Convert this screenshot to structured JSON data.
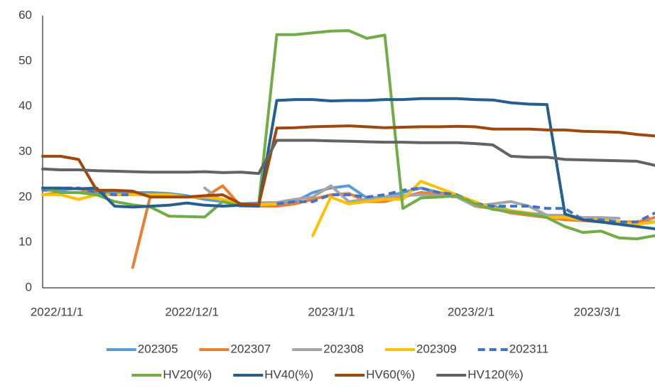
{
  "chart_data": {
    "type": "line",
    "x": [
      "2022/11/1",
      "2022/11/5",
      "2022/11/9",
      "2022/11/13",
      "2022/11/17",
      "2022/11/21",
      "2022/11/25",
      "2022/11/29",
      "2022/12/3",
      "2022/12/7",
      "2022/12/11",
      "2022/12/15",
      "2022/12/19",
      "2022/12/23",
      "2022/12/27",
      "2022/12/31",
      "2023/1/4",
      "2023/1/8",
      "2023/1/12",
      "2023/1/16",
      "2023/1/20",
      "2023/1/24",
      "2023/1/28",
      "2023/2/1",
      "2023/2/5",
      "2023/2/9",
      "2023/2/13",
      "2023/2/17",
      "2023/2/21",
      "2023/2/25",
      "2023/3/1",
      "2023/3/5",
      "2023/3/9",
      "2023/3/13",
      "2023/3/17"
    ],
    "xlim": [
      "2022/11/1",
      "2023/3/17"
    ],
    "xticks": [
      "2022/11/1",
      "2022/12/1",
      "2023/1/1",
      "2023/2/1",
      "2023/3/1"
    ],
    "ylim": [
      0,
      60
    ],
    "yticks": [
      0,
      10,
      20,
      30,
      40,
      50,
      60
    ],
    "series": [
      {
        "name": "202305",
        "color": "#5b9bd5",
        "values": [
          21.5,
          21.5,
          22,
          21,
          21,
          21,
          21,
          20.8,
          20.3,
          19.5,
          19,
          18.5,
          18.7,
          18.8,
          19,
          21,
          22,
          22.5,
          19.8,
          20,
          21,
          22,
          21,
          20.5,
          18.5,
          18,
          17,
          16.5,
          16,
          15.5,
          15,
          14.5,
          14.5,
          14.5,
          14.5
        ]
      },
      {
        "name": "202307",
        "color": "#ed7d31",
        "values": [
          20.5,
          21,
          21,
          21.5,
          null,
          4.5,
          20.5,
          20.5,
          20,
          20,
          22.5,
          18,
          18,
          18,
          18.5,
          19.5,
          20.5,
          20.8,
          19,
          19,
          20,
          21,
          20.8,
          20.5,
          18,
          17.5,
          16.5,
          16,
          15.5,
          15,
          14.8,
          14.5,
          14.5,
          14.5,
          15.5
        ]
      },
      {
        "name": "202308",
        "color": "#a5a5a5",
        "values": [
          null,
          null,
          null,
          null,
          null,
          null,
          null,
          null,
          null,
          22,
          19,
          18,
          18.5,
          18.8,
          19.5,
          20,
          22.5,
          19,
          19.5,
          20,
          20.3,
          20.5,
          20.3,
          20,
          18,
          18.5,
          19,
          18,
          16,
          16,
          15.5,
          15.5,
          15.3,
          null,
          15.5
        ]
      },
      {
        "name": "202309",
        "color": "#ffc000",
        "values": [
          20.5,
          20.5,
          19.5,
          20.5,
          20.5,
          20.5,
          20.5,
          20.5,
          20,
          20,
          19.5,
          18.5,
          18.3,
          18.5,
          null,
          11.5,
          20,
          18.5,
          19,
          19.5,
          19.5,
          23.5,
          22,
          20.5,
          19,
          17.5,
          17,
          16.5,
          15.5,
          15.5,
          15,
          15,
          14.5,
          14,
          14.5
        ]
      },
      {
        "name": "202311",
        "color": "#4472c4",
        "dashed": true,
        "values": [
          21.5,
          22,
          22,
          21,
          20.5,
          20.5,
          null,
          null,
          null,
          null,
          null,
          null,
          null,
          18.5,
          19,
          19,
          20.5,
          20.5,
          20,
          20.5,
          21.5,
          22,
          21,
          20.5,
          18.5,
          18,
          18,
          18,
          17.5,
          17.5,
          15,
          15,
          14.5,
          14.5,
          16.5
        ]
      },
      {
        "name": "HV20(%)",
        "color": "#70ad47",
        "values": [
          22,
          21,
          21,
          20.5,
          19,
          18.3,
          17.8,
          15.8,
          15.7,
          15.6,
          19,
          18,
          18.5,
          55.8,
          55.8,
          56.2,
          56.6,
          56.7,
          55,
          55.7,
          17.5,
          19.8,
          20,
          20.3,
          18.5,
          17.3,
          16.8,
          16.3,
          15.5,
          13.5,
          12.2,
          12.5,
          11,
          10.8,
          11.5
        ]
      },
      {
        "name": "HV40(%)",
        "color": "#255e91",
        "values": [
          22,
          22,
          21.8,
          22,
          18,
          17.8,
          18,
          18.2,
          18.7,
          18.2,
          18,
          18.2,
          18,
          41.3,
          41.5,
          41.5,
          41.2,
          41.3,
          41.3,
          41.5,
          41.5,
          41.7,
          41.7,
          41.7,
          41.5,
          41.4,
          40.8,
          40.5,
          40.4,
          16.3,
          15,
          14.5,
          14,
          13.5,
          13
        ]
      },
      {
        "name": "HV60(%)",
        "color": "#9e480e",
        "values": [
          29,
          29,
          28.3,
          21.5,
          21.5,
          21.3,
          20,
          20,
          20,
          20.3,
          20.5,
          18.5,
          18.3,
          35.2,
          35.3,
          35.5,
          35.6,
          35.7,
          35.5,
          35.3,
          35.4,
          35.5,
          35.5,
          35.6,
          35.5,
          35,
          35,
          35,
          34.8,
          34.8,
          34.5,
          34.4,
          34.3,
          33.8,
          33.5
        ]
      },
      {
        "name": "HV120(%)",
        "color": "#636363",
        "values": [
          26.2,
          26,
          26,
          25.8,
          25.7,
          25.6,
          25.5,
          25.5,
          25.5,
          25.6,
          25.4,
          25.5,
          25.2,
          32.5,
          32.5,
          32.5,
          32.4,
          32.3,
          32.2,
          32.1,
          32.1,
          32,
          32,
          32,
          31.8,
          31.5,
          29,
          28.8,
          28.8,
          28.3,
          28.2,
          28.1,
          28,
          27.9,
          27
        ]
      }
    ]
  }
}
